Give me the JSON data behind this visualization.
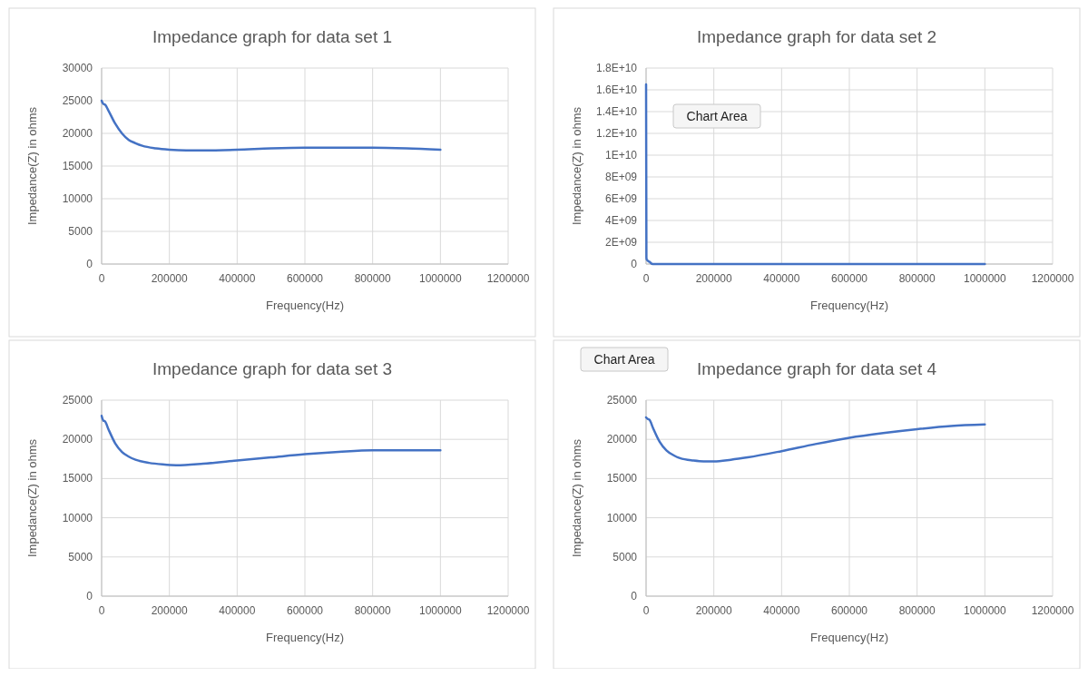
{
  "chart_data": [
    {
      "type": "line",
      "title": "Impedance  graph for data set 1",
      "xlabel": "Frequency(Hz)",
      "ylabel": "Impedance(Z) in ohms",
      "grid": true,
      "xlim": [
        0,
        1200000
      ],
      "xticks": [
        0,
        200000,
        400000,
        600000,
        800000,
        1000000,
        1200000
      ],
      "ylim": [
        0,
        30000
      ],
      "yticks": [
        0,
        5000,
        10000,
        15000,
        20000,
        25000,
        30000
      ],
      "series": [
        {
          "color": "#4472c4",
          "x": [
            0,
            5000,
            10000,
            20000,
            40000,
            60000,
            80000,
            100000,
            120000,
            160000,
            200000,
            250000,
            300000,
            400000,
            500000,
            600000,
            700000,
            800000,
            900000,
            1000000
          ],
          "values": [
            25000,
            24500,
            24400,
            23500,
            21500,
            20000,
            19000,
            18500,
            18100,
            17700,
            17500,
            17400,
            17400,
            17500,
            17700,
            17800,
            17800,
            17800,
            17700,
            17500
          ]
        }
      ]
    },
    {
      "type": "line",
      "title": "Impedance  graph for data set 2",
      "xlabel": "Frequency(Hz)",
      "ylabel": "Impedance(Z) in ohms",
      "grid": true,
      "xlim": [
        0,
        1200000
      ],
      "xticks": [
        0,
        200000,
        400000,
        600000,
        800000,
        1000000,
        1200000
      ],
      "ylim": [
        0,
        18000000000
      ],
      "yticks": [
        0,
        {
          "value": 2000000000,
          "label": "2E+09"
        },
        {
          "value": 4000000000,
          "label": "4E+09"
        },
        {
          "value": 6000000000,
          "label": "6E+09"
        },
        {
          "value": 8000000000,
          "label": "8E+09"
        },
        {
          "value": 10000000000,
          "label": "1E+10"
        },
        {
          "value": 12000000000,
          "label": "1.2E+10"
        },
        {
          "value": 14000000000,
          "label": "1.4E+10"
        },
        {
          "value": 16000000000,
          "label": "1.6E+10"
        },
        {
          "value": 18000000000,
          "label": "1.8E+10"
        }
      ],
      "annotations": [
        "Chart Area"
      ],
      "series": [
        {
          "color": "#4472c4",
          "x": [
            0,
            1000,
            2000,
            10000,
            20000,
            100000,
            400000,
            700000,
            1000000
          ],
          "values": [
            16500000000,
            600000000,
            400000000,
            200000000,
            0,
            0,
            0,
            0,
            0
          ]
        }
      ]
    },
    {
      "type": "line",
      "title": "Impedance  graph for data set 3",
      "xlabel": "Frequency(Hz)",
      "ylabel": "Impedance(Z) in ohms",
      "grid": true,
      "xlim": [
        0,
        1200000
      ],
      "xticks": [
        0,
        200000,
        400000,
        600000,
        800000,
        1000000,
        1200000
      ],
      "ylim": [
        0,
        25000
      ],
      "yticks": [
        0,
        5000,
        10000,
        15000,
        20000,
        25000
      ],
      "series": [
        {
          "color": "#4472c4",
          "x": [
            0,
            5000,
            10000,
            20000,
            40000,
            60000,
            80000,
            100000,
            140000,
            180000,
            220000,
            300000,
            400000,
            500000,
            600000,
            700000,
            800000,
            900000,
            1000000
          ],
          "values": [
            23000,
            22400,
            22300,
            21300,
            19500,
            18400,
            17800,
            17400,
            17000,
            16800,
            16700,
            16900,
            17300,
            17700,
            18100,
            18400,
            18600,
            18600,
            18600
          ]
        }
      ]
    },
    {
      "type": "line",
      "title": "Impedance  graph for data set 4",
      "xlabel": "Frequency(Hz)",
      "ylabel": "Impedance(Z) in ohms",
      "grid": true,
      "xlim": [
        0,
        1200000
      ],
      "xticks": [
        0,
        200000,
        400000,
        600000,
        800000,
        1000000,
        1200000
      ],
      "ylim": [
        0,
        25000
      ],
      "yticks": [
        0,
        5000,
        10000,
        15000,
        20000,
        25000
      ],
      "annotations": [
        "Chart Area"
      ],
      "series": [
        {
          "color": "#4472c4",
          "x": [
            0,
            5000,
            10000,
            20000,
            40000,
            60000,
            80000,
            100000,
            140000,
            170000,
            200000,
            250000,
            300000,
            400000,
            500000,
            600000,
            700000,
            800000,
            900000,
            1000000
          ],
          "values": [
            22800,
            22600,
            22500,
            21500,
            19700,
            18600,
            18000,
            17600,
            17300,
            17200,
            17200,
            17400,
            17700,
            18500,
            19400,
            20200,
            20800,
            21300,
            21700,
            21900
          ]
        }
      ]
    }
  ]
}
